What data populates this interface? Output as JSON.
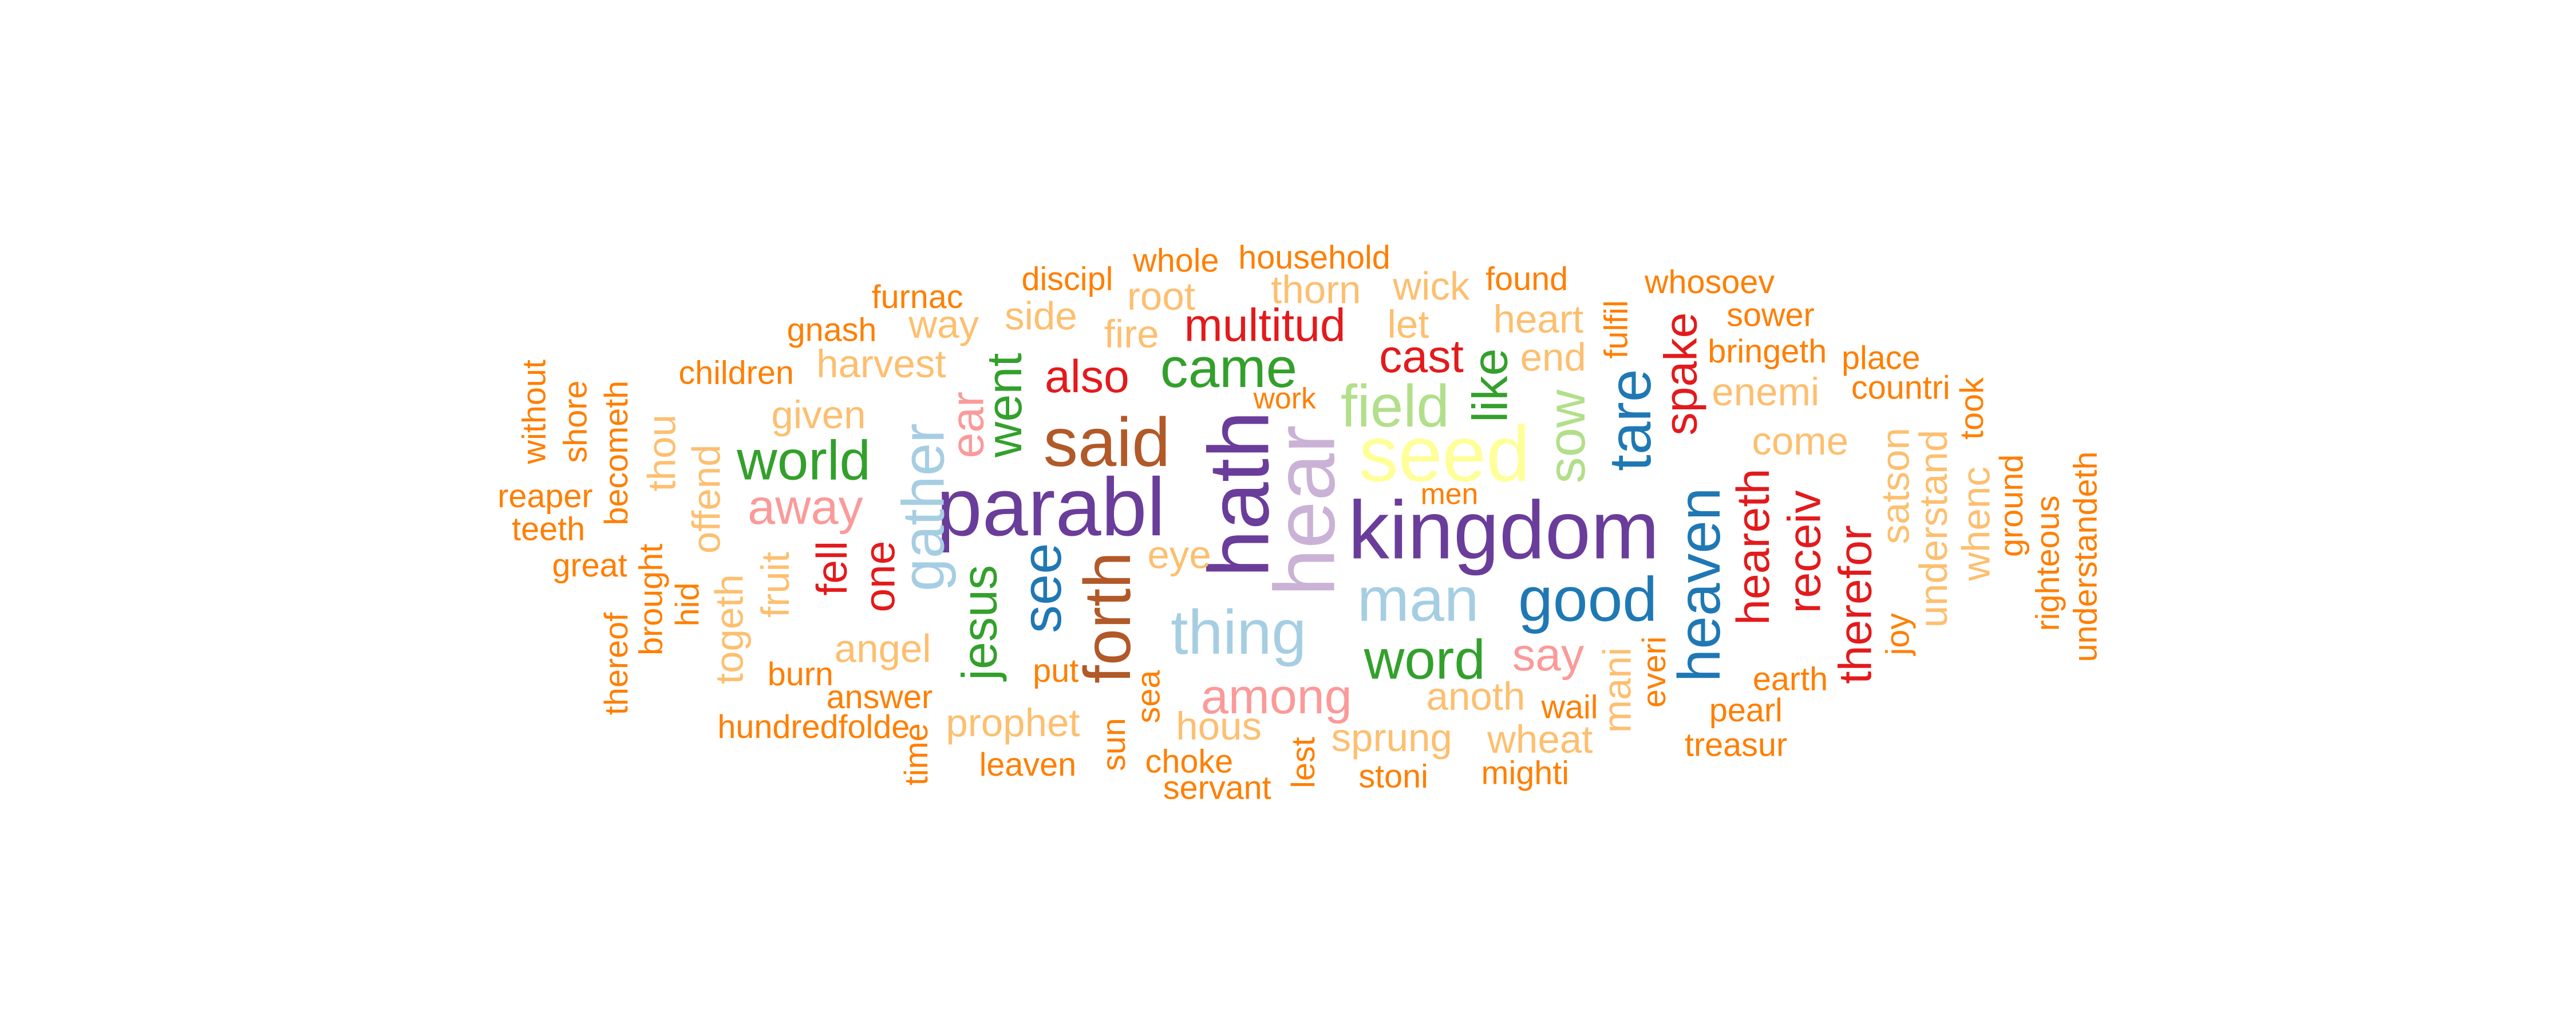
{
  "palette": {
    "orange": "#ff7f00",
    "light_orange": "#fdbf6f",
    "red": "#e31a1c",
    "pink": "#fb9a99",
    "green": "#33a02c",
    "light_green": "#b2df8a",
    "blue": "#1f78b4",
    "light_blue": "#a6cee3",
    "purple": "#6a3d9a",
    "lavender": "#cab2d6",
    "yellow": "#ffff99",
    "brown": "#b15928"
  },
  "words": [
    {
      "text": "kingdom",
      "color": "#6a3d9a"
    },
    {
      "text": "parabl",
      "color": "#6a3d9a"
    },
    {
      "text": "hath",
      "color": "#6a3d9a"
    },
    {
      "text": "hear",
      "color": "#cab2d6"
    },
    {
      "text": "seed",
      "color": "#ffff99"
    },
    {
      "text": "said",
      "color": "#b15928"
    },
    {
      "text": "forth",
      "color": "#b15928"
    },
    {
      "text": "thing",
      "color": "#a6cee3"
    },
    {
      "text": "man",
      "color": "#a6cee3"
    },
    {
      "text": "gather",
      "color": "#a6cee3"
    },
    {
      "text": "good",
      "color": "#1f78b4"
    },
    {
      "text": "heaven",
      "color": "#1f78b4"
    },
    {
      "text": "tare",
      "color": "#1f78b4"
    },
    {
      "text": "see",
      "color": "#1f78b4"
    },
    {
      "text": "world",
      "color": "#33a02c"
    },
    {
      "text": "came",
      "color": "#33a02c"
    },
    {
      "text": "word",
      "color": "#33a02c"
    },
    {
      "text": "went",
      "color": "#33a02c"
    },
    {
      "text": "jesus",
      "color": "#33a02c"
    },
    {
      "text": "like",
      "color": "#33a02c"
    },
    {
      "text": "field",
      "color": "#b2df8a"
    },
    {
      "text": "sow",
      "color": "#b2df8a"
    },
    {
      "text": "among",
      "color": "#fb9a99"
    },
    {
      "text": "away",
      "color": "#fb9a99"
    },
    {
      "text": "say",
      "color": "#fb9a99"
    },
    {
      "text": "ear",
      "color": "#fb9a99"
    },
    {
      "text": "multitud",
      "color": "#e31a1c"
    },
    {
      "text": "also",
      "color": "#e31a1c"
    },
    {
      "text": "cast",
      "color": "#e31a1c"
    },
    {
      "text": "spake",
      "color": "#e31a1c"
    },
    {
      "text": "heareth",
      "color": "#e31a1c"
    },
    {
      "text": "receiv",
      "color": "#e31a1c"
    },
    {
      "text": "therefor",
      "color": "#e31a1c"
    },
    {
      "text": "fell",
      "color": "#e31a1c"
    },
    {
      "text": "one",
      "color": "#e31a1c"
    },
    {
      "text": "whole",
      "color": "#ff7f00"
    },
    {
      "text": "household",
      "color": "#ff7f00"
    },
    {
      "text": "discipl",
      "color": "#ff7f00"
    },
    {
      "text": "found",
      "color": "#ff7f00"
    },
    {
      "text": "whosoev",
      "color": "#ff7f00"
    },
    {
      "text": "furnac",
      "color": "#ff7f00"
    },
    {
      "text": "gnash",
      "color": "#ff7f00"
    },
    {
      "text": "sower",
      "color": "#ff7f00"
    },
    {
      "text": "bringeth",
      "color": "#ff7f00"
    },
    {
      "text": "place",
      "color": "#ff7f00"
    },
    {
      "text": "countri",
      "color": "#ff7f00"
    },
    {
      "text": "children",
      "color": "#ff7f00"
    },
    {
      "text": "work",
      "color": "#ff7f00"
    },
    {
      "text": "reaper",
      "color": "#ff7f00"
    },
    {
      "text": "teeth",
      "color": "#ff7f00"
    },
    {
      "text": "great",
      "color": "#ff7f00"
    },
    {
      "text": "men",
      "color": "#ff7f00"
    },
    {
      "text": "burn",
      "color": "#ff7f00"
    },
    {
      "text": "answer",
      "color": "#ff7f00"
    },
    {
      "text": "put",
      "color": "#ff7f00"
    },
    {
      "text": "hundredfolde",
      "color": "#ff7f00"
    },
    {
      "text": "leaven",
      "color": "#ff7f00"
    },
    {
      "text": "choke",
      "color": "#ff7f00"
    },
    {
      "text": "servant",
      "color": "#ff7f00"
    },
    {
      "text": "stoni",
      "color": "#ff7f00"
    },
    {
      "text": "mighti",
      "color": "#ff7f00"
    },
    {
      "text": "wail",
      "color": "#ff7f00"
    },
    {
      "text": "earth",
      "color": "#ff7f00"
    },
    {
      "text": "pearl",
      "color": "#ff7f00"
    },
    {
      "text": "treasur",
      "color": "#ff7f00"
    },
    {
      "text": "without",
      "color": "#ff7f00"
    },
    {
      "text": "shore",
      "color": "#ff7f00"
    },
    {
      "text": "becometh",
      "color": "#ff7f00"
    },
    {
      "text": "brought",
      "color": "#ff7f00"
    },
    {
      "text": "hid",
      "color": "#ff7f00"
    },
    {
      "text": "thereof",
      "color": "#ff7f00"
    },
    {
      "text": "time",
      "color": "#ff7f00"
    },
    {
      "text": "sun",
      "color": "#ff7f00"
    },
    {
      "text": "sea",
      "color": "#ff7f00"
    },
    {
      "text": "lest",
      "color": "#ff7f00"
    },
    {
      "text": "everi",
      "color": "#ff7f00"
    },
    {
      "text": "fulfil",
      "color": "#ff7f00"
    },
    {
      "text": "took",
      "color": "#ff7f00"
    },
    {
      "text": "ground",
      "color": "#ff7f00"
    },
    {
      "text": "understandeth",
      "color": "#ff7f00"
    },
    {
      "text": "righteous",
      "color": "#ff7f00"
    },
    {
      "text": "joy",
      "color": "#ff7f00"
    },
    {
      "text": "root",
      "color": "#fdbf6f"
    },
    {
      "text": "thorn",
      "color": "#fdbf6f"
    },
    {
      "text": "wick",
      "color": "#fdbf6f"
    },
    {
      "text": "way",
      "color": "#fdbf6f"
    },
    {
      "text": "side",
      "color": "#fdbf6f"
    },
    {
      "text": "fire",
      "color": "#fdbf6f"
    },
    {
      "text": "let",
      "color": "#fdbf6f"
    },
    {
      "text": "heart",
      "color": "#fdbf6f"
    },
    {
      "text": "harvest",
      "color": "#fdbf6f"
    },
    {
      "text": "end",
      "color": "#fdbf6f"
    },
    {
      "text": "enemi",
      "color": "#fdbf6f"
    },
    {
      "text": "given",
      "color": "#fdbf6f"
    },
    {
      "text": "come",
      "color": "#fdbf6f"
    },
    {
      "text": "eye",
      "color": "#fdbf6f"
    },
    {
      "text": "angel",
      "color": "#fdbf6f"
    },
    {
      "text": "prophet",
      "color": "#fdbf6f"
    },
    {
      "text": "hous",
      "color": "#fdbf6f"
    },
    {
      "text": "sprung",
      "color": "#fdbf6f"
    },
    {
      "text": "anoth",
      "color": "#fdbf6f"
    },
    {
      "text": "wheat",
      "color": "#fdbf6f"
    },
    {
      "text": "thou",
      "color": "#fdbf6f"
    },
    {
      "text": "offend",
      "color": "#fdbf6f"
    },
    {
      "text": "togeth",
      "color": "#fdbf6f"
    },
    {
      "text": "fruit",
      "color": "#fdbf6f"
    },
    {
      "text": "mani",
      "color": "#fdbf6f"
    },
    {
      "text": "satson",
      "color": "#fdbf6f"
    },
    {
      "text": "understand",
      "color": "#fdbf6f"
    },
    {
      "text": "whenc",
      "color": "#fdbf6f"
    }
  ]
}
